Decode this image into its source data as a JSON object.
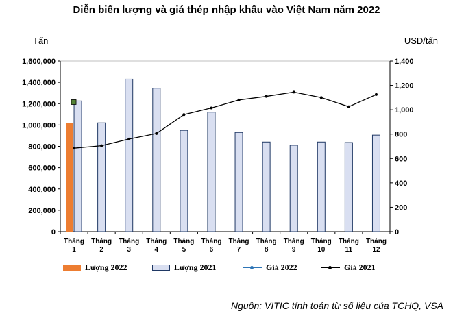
{
  "chart_data": {
    "type": "bar",
    "title": "Diễn biến lượng và giá thép nhập khẩu vào Việt Nam năm 2022",
    "ylabel_left": "Tấn",
    "ylabel_right": "USD/tấn",
    "categories": [
      [
        "Tháng",
        "1"
      ],
      [
        "Tháng",
        "2"
      ],
      [
        "Tháng",
        "3"
      ],
      [
        "Tháng",
        "4"
      ],
      [
        "Tháng",
        "5"
      ],
      [
        "Tháng",
        "6"
      ],
      [
        "Tháng",
        "7"
      ],
      [
        "Tháng",
        "8"
      ],
      [
        "Tháng",
        "9"
      ],
      [
        "Tháng",
        "10"
      ],
      [
        "Tháng",
        "11"
      ],
      [
        "Tháng",
        "12"
      ]
    ],
    "ylim_left": [
      0,
      1600000
    ],
    "ylim_right": [
      0,
      1400
    ],
    "yticks_left": [
      "0",
      "200,000",
      "400,000",
      "600,000",
      "800,000",
      "1,000,000",
      "1,200,000",
      "1,400,000",
      "1,600,000"
    ],
    "yticks_right": [
      "0",
      "200",
      "400",
      "600",
      "800",
      "1,000",
      "1,200",
      "1,400"
    ],
    "series": [
      {
        "name": "Lượng 2022",
        "kind": "bar",
        "axis": "left",
        "color": "#ed7d31",
        "values": [
          1020000,
          null,
          null,
          null,
          null,
          null,
          null,
          null,
          null,
          null,
          null,
          null
        ]
      },
      {
        "name": "Lượng 2021",
        "kind": "bar",
        "axis": "left",
        "color": "#d9dff1",
        "stroke": "#1f3864",
        "values": [
          1225000,
          1020000,
          1430000,
          1345000,
          950000,
          1120000,
          930000,
          840000,
          810000,
          840000,
          835000,
          905000
        ]
      },
      {
        "name": "Giá 2022",
        "kind": "line",
        "axis": "right",
        "color": "#2e75b6",
        "marker_color": "#548235",
        "values": [
          1060,
          null,
          null,
          null,
          null,
          null,
          null,
          null,
          null,
          null,
          null,
          null
        ]
      },
      {
        "name": "Giá 2021",
        "kind": "line",
        "axis": "right",
        "color": "#000000",
        "values": [
          685,
          705,
          760,
          805,
          960,
          1015,
          1080,
          1110,
          1145,
          1100,
          1025,
          1125
        ]
      }
    ],
    "grid": false,
    "legend_position": "bottom",
    "source": "Nguồn: VITIC tính toán từ số liệu của TCHQ, VSA"
  }
}
